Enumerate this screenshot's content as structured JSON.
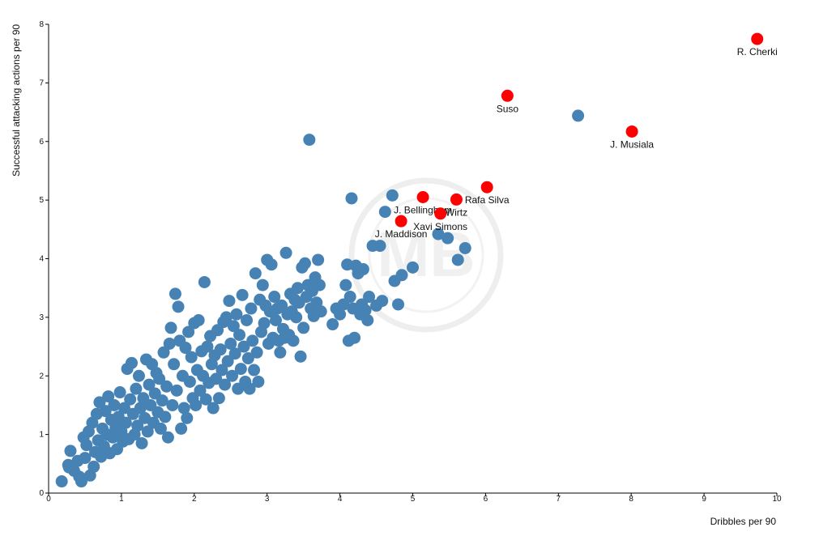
{
  "chart_data": {
    "type": "scatter",
    "xlabel": "Dribbles per 90",
    "ylabel": "Successful attacking actions per 90",
    "xlim": [
      0,
      10
    ],
    "ylim": [
      0,
      8
    ],
    "x_ticks": [
      "0",
      "1",
      "2",
      "3",
      "4",
      "5",
      "6",
      "7",
      "8",
      "9",
      "10"
    ],
    "y_ticks": [
      "0",
      "1",
      "2",
      "3",
      "4",
      "5",
      "6",
      "7",
      "8"
    ],
    "grid": false,
    "colors": {
      "base": "#4682b4",
      "highlight": "#ff0000",
      "axis": "#000000"
    },
    "watermark": "MB",
    "highlighted": [
      {
        "name": "R. Cherki",
        "x": 9.73,
        "y": 7.75
      },
      {
        "name": "Suso",
        "x": 6.3,
        "y": 6.78
      },
      {
        "name": "J. Musiala",
        "x": 8.01,
        "y": 6.17
      },
      {
        "name": "Rafa Silva",
        "x": 6.02,
        "y": 5.22
      },
      {
        "name": "J. Bellingham",
        "x": 5.14,
        "y": 5.05
      },
      {
        "name": "Wirtz",
        "x": 5.6,
        "y": 5.01
      },
      {
        "name": "Xavi Simons",
        "x": 5.38,
        "y": 4.77
      },
      {
        "name": "J. Maddison",
        "x": 4.84,
        "y": 4.64
      }
    ],
    "series": [
      {
        "points": [
          [
            0.18,
            0.2
          ],
          [
            0.27,
            0.48
          ],
          [
            0.28,
            0.44
          ],
          [
            0.3,
            0.72
          ],
          [
            0.35,
            0.38
          ],
          [
            0.4,
            0.55
          ],
          [
            0.42,
            0.28
          ],
          [
            0.45,
            0.2
          ],
          [
            0.48,
            0.95
          ],
          [
            0.5,
            0.6
          ],
          [
            0.52,
            0.82
          ],
          [
            0.55,
            1.05
          ],
          [
            0.57,
            0.3
          ],
          [
            0.6,
            1.2
          ],
          [
            0.62,
            0.45
          ],
          [
            0.64,
            0.7
          ],
          [
            0.66,
            1.35
          ],
          [
            0.68,
            0.9
          ],
          [
            0.7,
            1.55
          ],
          [
            0.72,
            0.62
          ],
          [
            0.74,
            1.1
          ],
          [
            0.76,
            0.8
          ],
          [
            0.78,
            1.4
          ],
          [
            0.8,
            1.0
          ],
          [
            0.82,
            1.65
          ],
          [
            0.84,
            0.68
          ],
          [
            0.86,
            1.25
          ],
          [
            0.88,
            0.95
          ],
          [
            0.9,
            1.5
          ],
          [
            0.92,
            1.12
          ],
          [
            0.94,
            0.75
          ],
          [
            0.96,
            1.3
          ],
          [
            0.98,
            1.72
          ],
          [
            1.0,
            1.05
          ],
          [
            1.02,
            0.88
          ],
          [
            1.04,
            1.45
          ],
          [
            1.06,
            1.2
          ],
          [
            1.08,
            2.12
          ],
          [
            1.1,
            0.92
          ],
          [
            1.12,
            1.6
          ],
          [
            1.14,
            2.22
          ],
          [
            1.16,
            1.35
          ],
          [
            1.18,
            1.0
          ],
          [
            1.2,
            1.78
          ],
          [
            1.22,
            1.15
          ],
          [
            1.24,
            2.0
          ],
          [
            1.26,
            1.45
          ],
          [
            1.28,
            0.85
          ],
          [
            1.3,
            1.62
          ],
          [
            1.32,
            1.28
          ],
          [
            1.34,
            2.28
          ],
          [
            1.36,
            1.05
          ],
          [
            1.38,
            1.85
          ],
          [
            1.4,
            1.5
          ],
          [
            1.42,
            2.2
          ],
          [
            1.44,
            1.2
          ],
          [
            1.46,
            1.7
          ],
          [
            1.48,
            2.05
          ],
          [
            1.5,
            1.38
          ],
          [
            1.52,
            1.95
          ],
          [
            1.54,
            1.1
          ],
          [
            1.56,
            1.58
          ],
          [
            1.58,
            2.4
          ],
          [
            1.6,
            1.3
          ],
          [
            1.62,
            1.82
          ],
          [
            1.64,
            0.95
          ],
          [
            1.66,
            2.55
          ],
          [
            1.68,
            2.82
          ],
          [
            1.7,
            1.5
          ],
          [
            1.72,
            2.2
          ],
          [
            1.74,
            3.4
          ],
          [
            1.76,
            1.75
          ],
          [
            1.78,
            3.18
          ],
          [
            1.8,
            2.6
          ],
          [
            1.82,
            1.1
          ],
          [
            1.84,
            2.0
          ],
          [
            1.86,
            1.45
          ],
          [
            1.88,
            2.48
          ],
          [
            1.9,
            1.28
          ],
          [
            1.92,
            2.75
          ],
          [
            1.94,
            1.9
          ],
          [
            1.96,
            2.32
          ],
          [
            1.98,
            1.62
          ],
          [
            2.0,
            2.9
          ],
          [
            2.02,
            1.5
          ],
          [
            2.04,
            2.1
          ],
          [
            2.06,
            2.95
          ],
          [
            2.08,
            1.75
          ],
          [
            2.1,
            2.42
          ],
          [
            2.12,
            2.0
          ],
          [
            2.14,
            3.6
          ],
          [
            2.16,
            1.6
          ],
          [
            2.18,
            2.5
          ],
          [
            2.2,
            1.88
          ],
          [
            2.22,
            2.68
          ],
          [
            2.24,
            2.2
          ],
          [
            2.26,
            1.45
          ],
          [
            2.28,
            2.35
          ],
          [
            2.3,
            1.95
          ],
          [
            2.32,
            2.78
          ],
          [
            2.34,
            1.62
          ],
          [
            2.36,
            2.45
          ],
          [
            2.38,
            2.1
          ],
          [
            2.4,
            2.92
          ],
          [
            2.42,
            1.85
          ],
          [
            2.44,
            3.0
          ],
          [
            2.46,
            2.25
          ],
          [
            2.48,
            3.28
          ],
          [
            2.5,
            2.55
          ],
          [
            2.52,
            2.0
          ],
          [
            2.54,
            2.85
          ],
          [
            2.56,
            2.38
          ],
          [
            2.58,
            3.05
          ],
          [
            2.6,
            1.78
          ],
          [
            2.62,
            2.7
          ],
          [
            2.64,
            2.12
          ],
          [
            2.66,
            3.38
          ],
          [
            2.68,
            2.5
          ],
          [
            2.7,
            1.9
          ],
          [
            2.72,
            2.95
          ],
          [
            2.74,
            2.3
          ],
          [
            2.76,
            1.78
          ],
          [
            2.78,
            3.15
          ],
          [
            2.8,
            2.6
          ],
          [
            2.82,
            2.1
          ],
          [
            2.84,
            3.75
          ],
          [
            2.86,
            2.4
          ],
          [
            2.88,
            1.9
          ],
          [
            2.9,
            3.3
          ],
          [
            2.92,
            2.75
          ],
          [
            2.94,
            3.55
          ],
          [
            2.96,
            2.9
          ],
          [
            2.98,
            3.2
          ],
          [
            3.0,
            3.98
          ],
          [
            3.02,
            2.55
          ],
          [
            3.04,
            3.1
          ],
          [
            3.06,
            3.9
          ],
          [
            3.08,
            2.65
          ],
          [
            3.1,
            3.35
          ],
          [
            3.12,
            2.95
          ],
          [
            3.14,
            3.15
          ],
          [
            3.16,
            2.6
          ],
          [
            3.18,
            2.4
          ],
          [
            3.2,
            3.2
          ],
          [
            3.22,
            2.8
          ],
          [
            3.24,
            2.65
          ],
          [
            3.26,
            4.1
          ],
          [
            3.28,
            3.05
          ],
          [
            3.3,
            2.7
          ],
          [
            3.32,
            3.4
          ],
          [
            3.34,
            3.1
          ],
          [
            3.36,
            2.6
          ],
          [
            3.38,
            3.3
          ],
          [
            3.4,
            3.0
          ],
          [
            3.42,
            3.5
          ],
          [
            3.44,
            3.25
          ],
          [
            3.46,
            2.33
          ],
          [
            3.48,
            3.85
          ],
          [
            3.5,
            2.82
          ],
          [
            3.52,
            3.92
          ],
          [
            3.54,
            3.35
          ],
          [
            3.56,
            3.55
          ],
          [
            3.58,
            6.03
          ],
          [
            3.6,
            3.15
          ],
          [
            3.62,
            3.45
          ],
          [
            3.64,
            3.02
          ],
          [
            3.66,
            3.68
          ],
          [
            3.68,
            3.25
          ],
          [
            3.7,
            3.98
          ],
          [
            3.72,
            3.55
          ],
          [
            3.74,
            3.1
          ],
          [
            3.9,
            2.88
          ],
          [
            3.95,
            3.15
          ],
          [
            4.0,
            3.05
          ],
          [
            4.05,
            3.22
          ],
          [
            4.08,
            3.55
          ],
          [
            4.1,
            3.9
          ],
          [
            4.12,
            2.6
          ],
          [
            4.14,
            3.35
          ],
          [
            4.16,
            5.03
          ],
          [
            4.18,
            3.15
          ],
          [
            4.2,
            2.65
          ],
          [
            4.22,
            3.88
          ],
          [
            4.25,
            3.75
          ],
          [
            4.28,
            3.05
          ],
          [
            4.3,
            3.22
          ],
          [
            4.32,
            3.82
          ],
          [
            4.35,
            3.12
          ],
          [
            4.38,
            2.95
          ],
          [
            4.4,
            3.35
          ],
          [
            4.45,
            4.22
          ],
          [
            4.5,
            3.2
          ],
          [
            4.55,
            4.22
          ],
          [
            4.58,
            3.28
          ],
          [
            4.62,
            4.8
          ],
          [
            4.72,
            5.08
          ],
          [
            4.75,
            3.62
          ],
          [
            4.8,
            3.22
          ],
          [
            4.85,
            3.72
          ],
          [
            5.0,
            3.85
          ],
          [
            5.35,
            4.42
          ],
          [
            5.48,
            4.35
          ],
          [
            5.62,
            3.98
          ],
          [
            5.72,
            4.18
          ],
          [
            7.27,
            6.44
          ]
        ]
      }
    ]
  }
}
